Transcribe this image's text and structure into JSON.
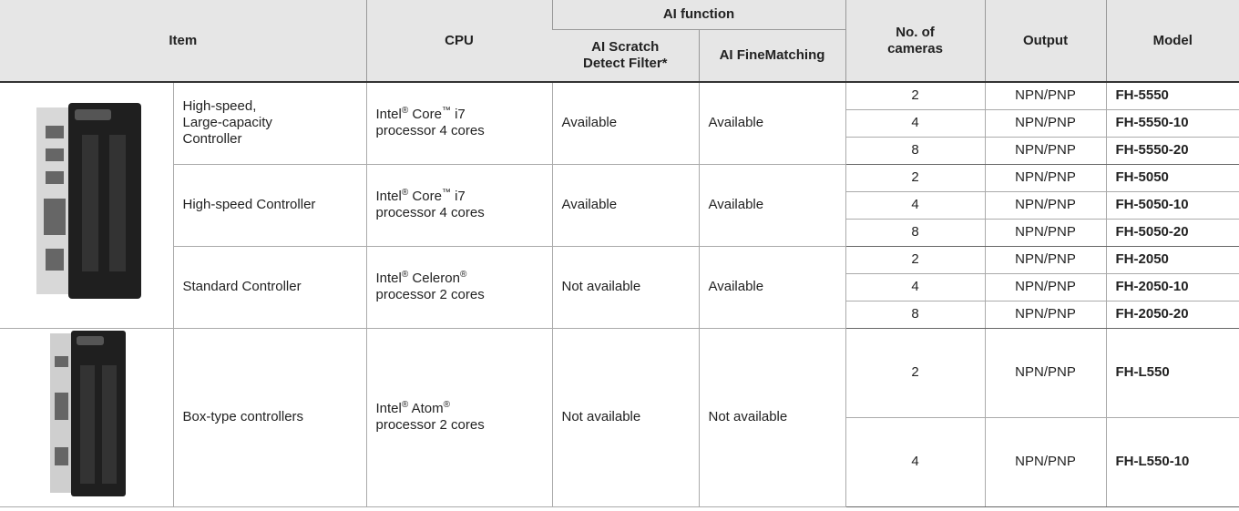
{
  "header": {
    "item": "Item",
    "cpu": "CPU",
    "ai_function": "AI function",
    "ai_scratch": [
      "AI Scratch",
      "Detect Filter*"
    ],
    "ai_fine": "AI FineMatching",
    "cameras": [
      "No. of",
      "cameras"
    ],
    "output": "Output",
    "model": "Model"
  },
  "groups": [
    {
      "name": [
        "High-speed,",
        "Large-capacity",
        "Controller"
      ],
      "cpu": [
        "Intel® Core™ i7",
        "processor 4 cores"
      ],
      "ai_scratch": "Available",
      "ai_fine": "Available",
      "rows": [
        {
          "cameras": 2,
          "output": "NPN/PNP",
          "model": "FH-5550"
        },
        {
          "cameras": 4,
          "output": "NPN/PNP",
          "model": "FH-5550-10"
        },
        {
          "cameras": 8,
          "output": "NPN/PNP",
          "model": "FH-5550-20"
        }
      ]
    },
    {
      "name": [
        "High-speed Controller"
      ],
      "cpu": [
        "Intel® Core™ i7",
        "processor 4 cores"
      ],
      "ai_scratch": "Available",
      "ai_fine": "Available",
      "rows": [
        {
          "cameras": 2,
          "output": "NPN/PNP",
          "model": "FH-5050"
        },
        {
          "cameras": 4,
          "output": "NPN/PNP",
          "model": "FH-5050-10"
        },
        {
          "cameras": 8,
          "output": "NPN/PNP",
          "model": "FH-5050-20"
        }
      ]
    },
    {
      "name": [
        "Standard Controller"
      ],
      "cpu": [
        "Intel® Celeron®",
        "processor 2 cores"
      ],
      "ai_scratch": "Not available",
      "ai_fine": "Available",
      "rows": [
        {
          "cameras": 2,
          "output": "NPN/PNP",
          "model": "FH-2050"
        },
        {
          "cameras": 4,
          "output": "NPN/PNP",
          "model": "FH-2050-10"
        },
        {
          "cameras": 8,
          "output": "NPN/PNP",
          "model": "FH-2050-20"
        }
      ]
    },
    {
      "name": [
        "Box-type controllers"
      ],
      "cpu": [
        "Intel® Atom®",
        "processor 2 cores"
      ],
      "ai_scratch": "Not available",
      "ai_fine": "Not available",
      "rows": [
        {
          "cameras": 2,
          "output": "NPN/PNP",
          "model": "FH-L550"
        },
        {
          "cameras": 4,
          "output": "NPN/PNP",
          "model": "FH-L550-10"
        }
      ]
    }
  ]
}
